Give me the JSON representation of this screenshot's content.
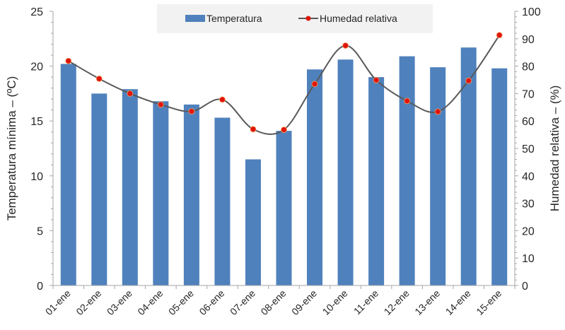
{
  "chart_data": {
    "type": "bar+line",
    "categories": [
      "01-ene",
      "02-ene",
      "03-ene",
      "04-ene",
      "05-ene",
      "06-ene",
      "07-ene",
      "08-ene",
      "09-ene",
      "10-ene",
      "11-ene",
      "12-ene",
      "13-ene",
      "14-ene",
      "15-ene"
    ],
    "series": [
      {
        "name": "Temperatura",
        "type": "bar",
        "axis": "left",
        "color": "#4f81bd",
        "values": [
          20.2,
          17.5,
          17.9,
          16.8,
          16.5,
          15.3,
          11.5,
          14.1,
          19.7,
          20.6,
          19.0,
          20.9,
          19.9,
          21.7,
          19.8
        ]
      },
      {
        "name": "Humedad relativa",
        "type": "line",
        "axis": "right",
        "color": "#595959",
        "marker_color": "#e0150b",
        "values": [
          81.9,
          75.4,
          70.0,
          66.0,
          63.5,
          67.8,
          57.0,
          56.8,
          73.5,
          87.5,
          74.9,
          67.3,
          63.4,
          74.7,
          91.3
        ]
      }
    ],
    "ylabel": "Temperatura mínima – (ºC)",
    "y2label": "Humedad relativa – (%)",
    "ylim": [
      0,
      25
    ],
    "y2lim": [
      0,
      100
    ],
    "yticks": [
      0,
      5,
      10,
      15,
      20,
      25
    ],
    "y2ticks": [
      0,
      10,
      20,
      30,
      40,
      50,
      60,
      70,
      80,
      90,
      100
    ],
    "grid": false,
    "legend": "top-center"
  }
}
